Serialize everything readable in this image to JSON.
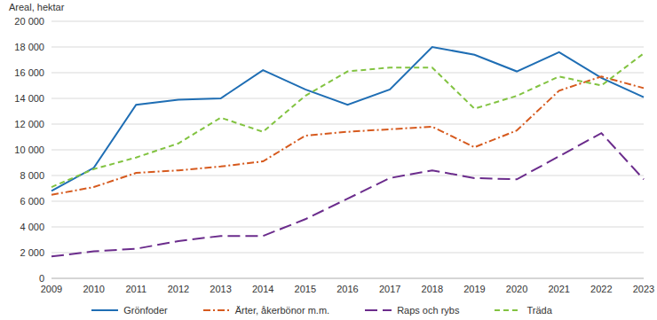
{
  "chart_data": {
    "type": "line",
    "y_label": "Areal, hektar",
    "categories": [
      "2009",
      "2010",
      "2011",
      "2012",
      "2013",
      "2014",
      "2015",
      "2016",
      "2017",
      "2018",
      "2019",
      "2020",
      "2021",
      "2022",
      "2023"
    ],
    "series": [
      {
        "name": "Grönfoder",
        "color": "#1f6eb4",
        "line_style": "solid",
        "values": [
          6800,
          8600,
          13500,
          13900,
          14000,
          16200,
          14700,
          13500,
          14700,
          18000,
          17400,
          16100,
          17600,
          15600,
          14100
        ]
      },
      {
        "name": "Ärter, åkerbönor m.m.",
        "color": "#d65a1e",
        "line_style": "dashdot",
        "values": [
          6500,
          7100,
          8200,
          8400,
          8700,
          9100,
          11100,
          11400,
          11600,
          11800,
          10200,
          11500,
          14600,
          15700,
          14800
        ]
      },
      {
        "name": "Raps och rybs",
        "color": "#6b2c8c",
        "line_style": "longdash",
        "values": [
          1700,
          2100,
          2300,
          2900,
          3300,
          3300,
          4600,
          6200,
          7800,
          8400,
          7800,
          7700,
          9500,
          11300,
          7700
        ]
      },
      {
        "name": "Träda",
        "color": "#82c341",
        "line_style": "dashed",
        "values": [
          7100,
          8500,
          9400,
          10500,
          12500,
          11400,
          14200,
          16100,
          16400,
          16400,
          13200,
          14200,
          15700,
          15000,
          17500
        ]
      }
    ],
    "ylim": [
      0,
      20000
    ],
    "yticks": [
      0,
      {
        "value": 2000,
        "label": "2 000"
      },
      {
        "value": 4000,
        "label": "4 000"
      },
      {
        "value": 6000,
        "label": "6 000"
      },
      {
        "value": 8000,
        "label": "8 000"
      },
      {
        "value": 10000,
        "label": "10 000"
      },
      {
        "value": 12000,
        "label": "12 000"
      },
      {
        "value": 14000,
        "label": "14 000"
      },
      {
        "value": 16000,
        "label": "16 000"
      },
      {
        "value": 18000,
        "label": "18 000"
      },
      {
        "value": 20000,
        "label": "20 000"
      }
    ],
    "grid": true,
    "legend": "bottom"
  }
}
